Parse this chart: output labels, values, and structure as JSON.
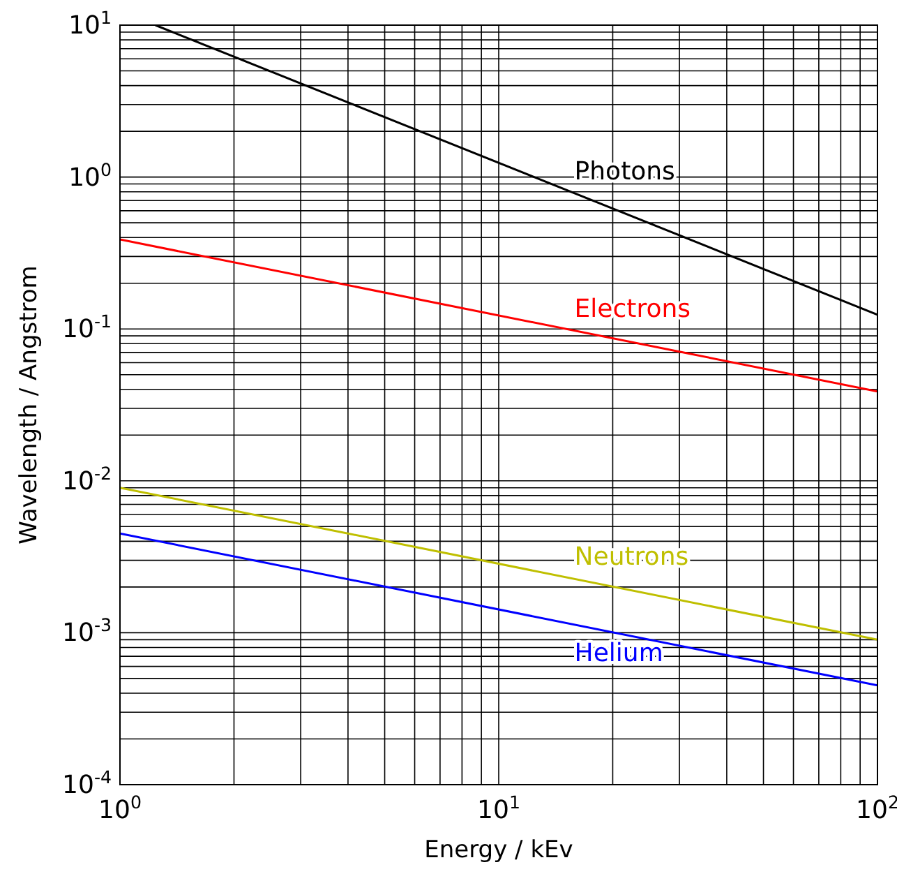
{
  "chart_data": {
    "type": "line",
    "xlabel": "Energy / kEv",
    "ylabel": "Wavelength / Angstrom",
    "log": "xy",
    "grid": true,
    "marker": "none",
    "line_style": "solid",
    "xlim": [
      1,
      100
    ],
    "ylim": [
      0.0001,
      10
    ],
    "xticks": [
      {
        "value": 1,
        "label": "10$^{0}$"
      },
      {
        "value": 2,
        "label": null
      },
      {
        "value": 3,
        "label": null
      },
      {
        "value": 4,
        "label": null
      },
      {
        "value": 5,
        "label": null
      },
      {
        "value": 6,
        "label": null
      },
      {
        "value": 7,
        "label": null
      },
      {
        "value": 8,
        "label": null
      },
      {
        "value": 9,
        "label": null
      },
      {
        "value": 10,
        "label": "10$^{1}$"
      },
      {
        "value": 20,
        "label": null
      },
      {
        "value": 30,
        "label": null
      },
      {
        "value": 40,
        "label": null
      },
      {
        "value": 50,
        "label": null
      },
      {
        "value": 60,
        "label": null
      },
      {
        "value": 70,
        "label": null
      },
      {
        "value": 80,
        "label": null
      },
      {
        "value": 90,
        "label": null
      },
      {
        "value": 100,
        "label": "10$^{2}$"
      }
    ],
    "yticks": [
      {
        "value": 0.0001,
        "label": "10$^{-4}$"
      },
      {
        "value": 0.0002,
        "label": null
      },
      {
        "value": 0.0003,
        "label": null
      },
      {
        "value": 0.0004,
        "label": null
      },
      {
        "value": 0.0005,
        "label": null
      },
      {
        "value": 0.0006,
        "label": null
      },
      {
        "value": 0.0007,
        "label": null
      },
      {
        "value": 0.0008,
        "label": null
      },
      {
        "value": 0.0009,
        "label": null
      },
      {
        "value": 0.001,
        "label": "10$^{-3}$"
      },
      {
        "value": 0.002,
        "label": null
      },
      {
        "value": 0.003,
        "label": null
      },
      {
        "value": 0.004,
        "label": null
      },
      {
        "value": 0.005,
        "label": null
      },
      {
        "value": 0.006,
        "label": null
      },
      {
        "value": 0.007,
        "label": null
      },
      {
        "value": 0.008,
        "label": null
      },
      {
        "value": 0.009,
        "label": null
      },
      {
        "value": 0.01,
        "label": "10$^{-2}$"
      },
      {
        "value": 0.02,
        "label": null
      },
      {
        "value": 0.03,
        "label": null
      },
      {
        "value": 0.04,
        "label": null
      },
      {
        "value": 0.05,
        "label": null
      },
      {
        "value": 0.06,
        "label": null
      },
      {
        "value": 0.07,
        "label": null
      },
      {
        "value": 0.08,
        "label": null
      },
      {
        "value": 0.09,
        "label": null
      },
      {
        "value": 0.1,
        "label": "10$^{-1}$"
      },
      {
        "value": 0.2,
        "label": null
      },
      {
        "value": 0.3,
        "label": null
      },
      {
        "value": 0.4,
        "label": null
      },
      {
        "value": 0.5,
        "label": null
      },
      {
        "value": 0.6,
        "label": null
      },
      {
        "value": 0.7,
        "label": null
      },
      {
        "value": 0.8,
        "label": null
      },
      {
        "value": 0.9,
        "label": null
      },
      {
        "value": 1,
        "label": "10$^{0}$"
      },
      {
        "value": 2,
        "label": null
      },
      {
        "value": 3,
        "label": null
      },
      {
        "value": 4,
        "label": null
      },
      {
        "value": 5,
        "label": null
      },
      {
        "value": 6,
        "label": null
      },
      {
        "value": 7,
        "label": null
      },
      {
        "value": 8,
        "label": null
      },
      {
        "value": 9,
        "label": null
      },
      {
        "value": 10,
        "label": "10$^{1}$"
      }
    ],
    "series": [
      {
        "name": "Photons",
        "color": "#000000",
        "x": [
          1.24,
          100
        ],
        "values": [
          10,
          0.124
        ]
      },
      {
        "name": "Electrons",
        "color": "#ff0000",
        "x": [
          1,
          100
        ],
        "values": [
          0.388,
          0.0388
        ]
      },
      {
        "name": "Neutrons",
        "color": "#bfbf00",
        "x": [
          1,
          100
        ],
        "values": [
          0.009,
          0.0009
        ]
      },
      {
        "name": "Helium",
        "color": "#0000ff",
        "x": [
          1,
          100
        ],
        "values": [
          0.0045,
          0.00045
        ]
      }
    ]
  }
}
